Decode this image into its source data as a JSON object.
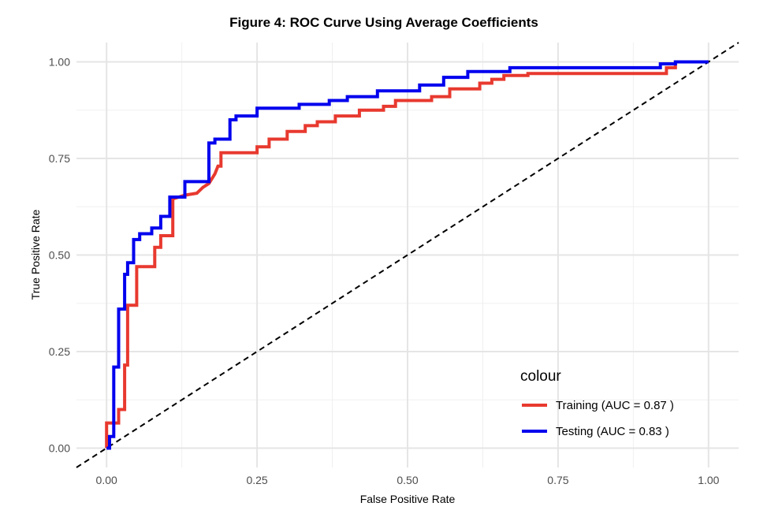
{
  "chart_data": {
    "type": "line",
    "title": "Figure 4: ROC Curve Using Average Coefficients",
    "xlabel": "False Positive Rate",
    "ylabel": "True Positive Rate",
    "xlim": [
      -0.05,
      1.05
    ],
    "ylim": [
      -0.05,
      1.05
    ],
    "x_ticks": [
      "0.00",
      "0.25",
      "0.50",
      "0.75",
      "1.00"
    ],
    "y_ticks": [
      "0.00",
      "0.25",
      "0.50",
      "0.75",
      "1.00"
    ],
    "grid": true,
    "legend_placement": "bottom-right",
    "legend_title": "colour",
    "reference_line": {
      "style": "dashed",
      "color": "#000000",
      "from": [
        -0.05,
        -0.05
      ],
      "to": [
        1.05,
        1.05
      ]
    },
    "series": [
      {
        "name": "Training (AUC = 0.87 )",
        "color": "#e8392f",
        "x": [
          0.0,
          0.0,
          0.02,
          0.02,
          0.03,
          0.03,
          0.035,
          0.035,
          0.05,
          0.05,
          0.08,
          0.08,
          0.09,
          0.09,
          0.11,
          0.11,
          0.13,
          0.15,
          0.16,
          0.17,
          0.18,
          0.185,
          0.19,
          0.19,
          0.25,
          0.25,
          0.27,
          0.27,
          0.3,
          0.3,
          0.33,
          0.33,
          0.35,
          0.35,
          0.38,
          0.38,
          0.42,
          0.42,
          0.46,
          0.46,
          0.48,
          0.48,
          0.54,
          0.54,
          0.57,
          0.57,
          0.62,
          0.62,
          0.64,
          0.64,
          0.66,
          0.66,
          0.7,
          0.7,
          0.93,
          0.93,
          0.945,
          0.945,
          1.0
        ],
        "y": [
          0.0,
          0.065,
          0.065,
          0.1,
          0.1,
          0.215,
          0.215,
          0.37,
          0.37,
          0.47,
          0.47,
          0.52,
          0.52,
          0.55,
          0.55,
          0.645,
          0.655,
          0.66,
          0.675,
          0.685,
          0.71,
          0.73,
          0.73,
          0.765,
          0.765,
          0.78,
          0.78,
          0.8,
          0.8,
          0.82,
          0.82,
          0.835,
          0.835,
          0.845,
          0.845,
          0.86,
          0.86,
          0.875,
          0.875,
          0.885,
          0.885,
          0.9,
          0.9,
          0.91,
          0.91,
          0.93,
          0.93,
          0.945,
          0.945,
          0.955,
          0.955,
          0.965,
          0.965,
          0.97,
          0.97,
          0.985,
          0.985,
          1.0,
          1.0
        ]
      },
      {
        "name": "Testing (AUC = 0.83 )",
        "color": "#0000ee",
        "x": [
          0.0,
          0.005,
          0.005,
          0.012,
          0.012,
          0.02,
          0.02,
          0.03,
          0.03,
          0.035,
          0.035,
          0.045,
          0.045,
          0.055,
          0.055,
          0.075,
          0.075,
          0.09,
          0.09,
          0.105,
          0.105,
          0.13,
          0.13,
          0.17,
          0.17,
          0.18,
          0.18,
          0.205,
          0.205,
          0.215,
          0.215,
          0.25,
          0.25,
          0.32,
          0.32,
          0.37,
          0.37,
          0.4,
          0.4,
          0.45,
          0.45,
          0.52,
          0.52,
          0.56,
          0.56,
          0.6,
          0.6,
          0.67,
          0.67,
          0.92,
          0.92,
          0.945,
          0.945,
          1.0
        ],
        "y": [
          0.0,
          0.0,
          0.03,
          0.03,
          0.21,
          0.21,
          0.36,
          0.36,
          0.45,
          0.45,
          0.48,
          0.48,
          0.54,
          0.54,
          0.555,
          0.555,
          0.57,
          0.57,
          0.6,
          0.6,
          0.65,
          0.65,
          0.69,
          0.69,
          0.79,
          0.79,
          0.8,
          0.8,
          0.85,
          0.85,
          0.86,
          0.86,
          0.88,
          0.88,
          0.89,
          0.89,
          0.9,
          0.9,
          0.91,
          0.91,
          0.925,
          0.925,
          0.94,
          0.94,
          0.96,
          0.96,
          0.975,
          0.975,
          0.985,
          0.985,
          0.995,
          0.995,
          1.0,
          1.0
        ]
      }
    ]
  }
}
